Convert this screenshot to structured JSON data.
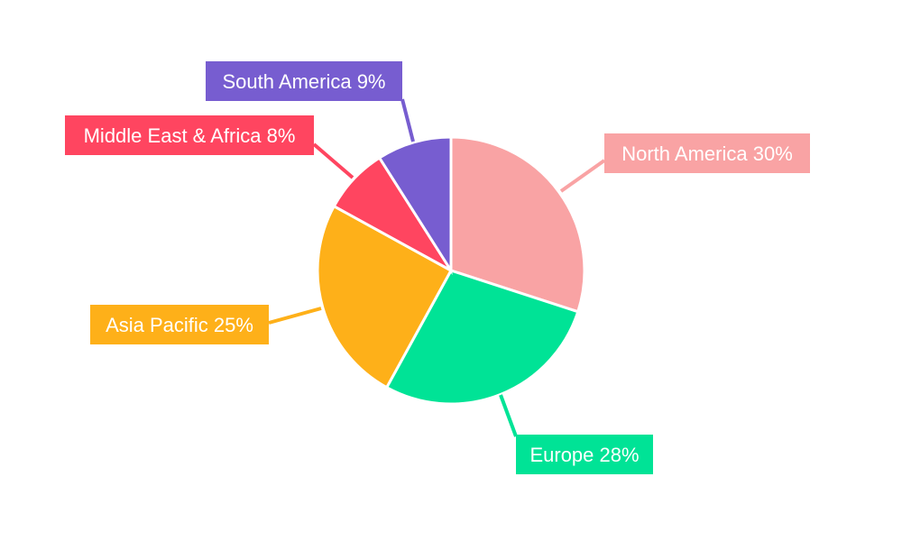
{
  "chart_data": {
    "type": "pie",
    "start_angle": "top",
    "direction": "clockwise",
    "slices": [
      {
        "label": "North America",
        "value": 30,
        "text": "North America 30%",
        "color": "#F9A3A4"
      },
      {
        "label": "Europe",
        "value": 28,
        "text": "Europe 28%",
        "color": "#00E396"
      },
      {
        "label": "Asia Pacific",
        "value": 25,
        "text": "Asia Pacific 25%",
        "color": "#FEB019"
      },
      {
        "label": "Middle East & Africa",
        "value": 8,
        "text": "Middle East & Africa 8%",
        "color": "#FF4560"
      },
      {
        "label": "South America",
        "value": 9,
        "text": "South America 9%",
        "color": "#775DD0"
      }
    ]
  }
}
